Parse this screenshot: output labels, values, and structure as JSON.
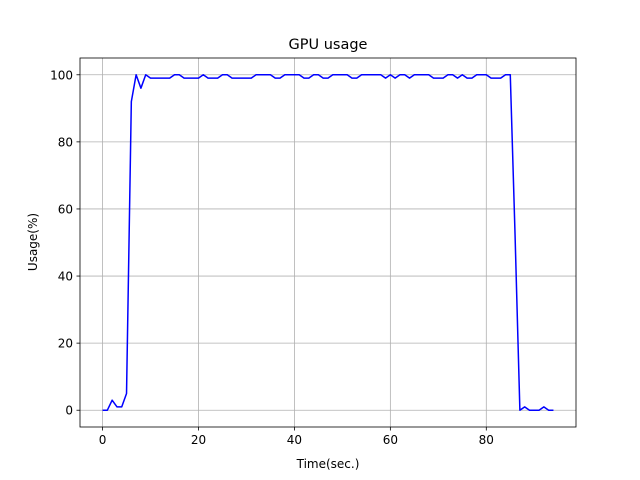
{
  "chart_data": {
    "type": "line",
    "title": "GPU usage",
    "xlabel": "Time(sec.)",
    "ylabel": "Usage(%)",
    "xlim": [
      -4.7,
      98.7
    ],
    "ylim": [
      -5,
      105
    ],
    "xticks": [
      0,
      20,
      40,
      60,
      80
    ],
    "yticks": [
      0,
      20,
      40,
      60,
      80,
      100
    ],
    "grid": true,
    "series": [
      {
        "color": "#0000ff",
        "x": [
          0,
          1,
          2,
          3,
          4,
          5,
          6,
          7,
          8,
          9,
          10,
          11,
          12,
          13,
          14,
          15,
          16,
          17,
          18,
          19,
          20,
          21,
          22,
          23,
          24,
          25,
          26,
          27,
          28,
          29,
          30,
          31,
          32,
          33,
          34,
          35,
          36,
          37,
          38,
          39,
          40,
          41,
          42,
          43,
          44,
          45,
          46,
          47,
          48,
          49,
          50,
          51,
          52,
          53,
          54,
          55,
          56,
          57,
          58,
          59,
          60,
          61,
          62,
          63,
          64,
          65,
          66,
          67,
          68,
          69,
          70,
          71,
          72,
          73,
          74,
          75,
          76,
          77,
          78,
          79,
          80,
          81,
          82,
          83,
          84,
          85,
          86,
          87,
          88,
          89,
          90,
          91,
          92,
          93,
          94
        ],
        "y": [
          0,
          0,
          3,
          1,
          1,
          5,
          92,
          100,
          96,
          100,
          99,
          99,
          99,
          99,
          99,
          100,
          100,
          99,
          99,
          99,
          99,
          100,
          99,
          99,
          99,
          100,
          100,
          99,
          99,
          99,
          99,
          99,
          100,
          100,
          100,
          100,
          99,
          99,
          100,
          100,
          100,
          100,
          99,
          99,
          100,
          100,
          99,
          99,
          100,
          100,
          100,
          100,
          99,
          99,
          100,
          100,
          100,
          100,
          100,
          99,
          100,
          99,
          100,
          100,
          99,
          100,
          100,
          100,
          100,
          99,
          99,
          99,
          100,
          100,
          99,
          100,
          99,
          99,
          100,
          100,
          100,
          99,
          99,
          99,
          100,
          100,
          52,
          0,
          1,
          0,
          0,
          0,
          1,
          0,
          0
        ]
      }
    ]
  }
}
